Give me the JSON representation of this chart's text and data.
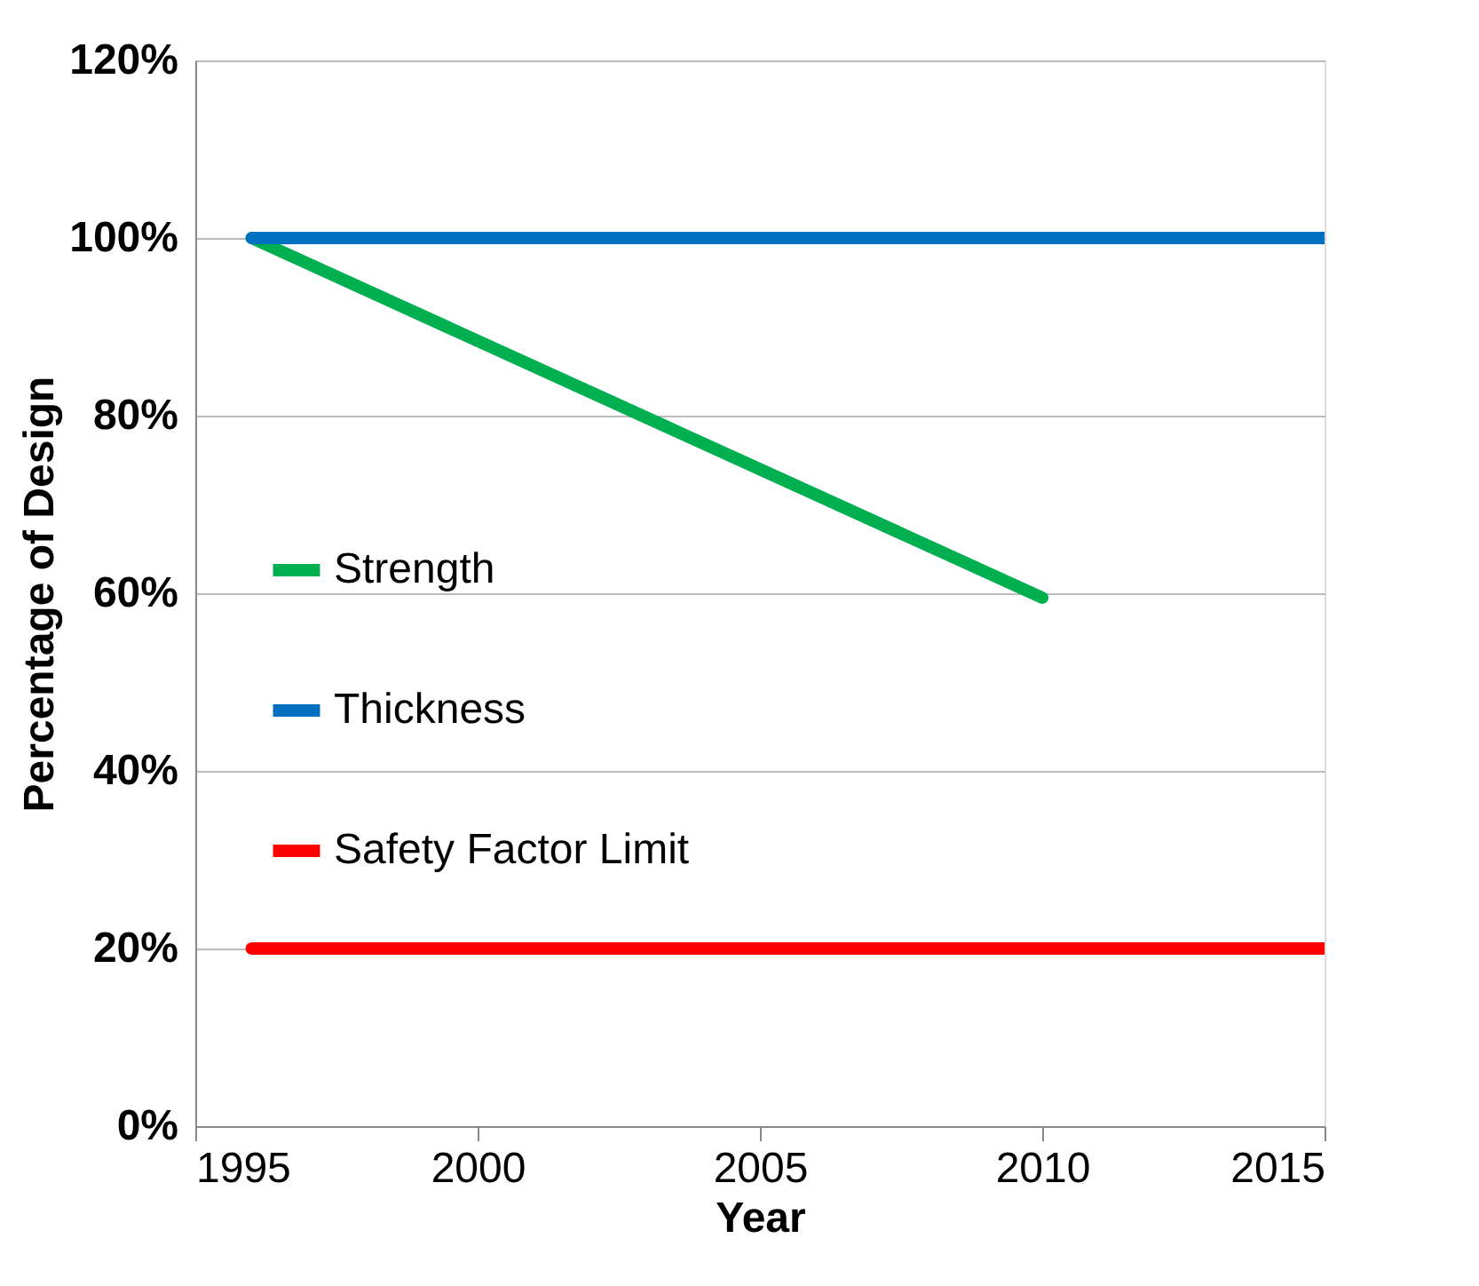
{
  "chart_data": {
    "type": "line",
    "xlabel": "Year",
    "ylabel": "Percentage of Design",
    "series": [
      {
        "name": "Strength",
        "color": "#00b050",
        "x": [
          1996,
          2010
        ],
        "values": [
          100,
          59.5
        ]
      },
      {
        "name": "Thickness",
        "color": "#0070c0",
        "x": [
          1996,
          2015
        ],
        "values": [
          100,
          100
        ]
      },
      {
        "name": "Safety Factor Limit",
        "color": "#ff0000",
        "x": [
          1996,
          2015
        ],
        "values": [
          20,
          20
        ]
      }
    ],
    "xlim": [
      1995,
      2015
    ],
    "xticks": [
      1995,
      2000,
      2005,
      2010,
      2015
    ],
    "ylim": [
      0,
      120
    ],
    "yticks": [
      {
        "value": 0,
        "label": "0%"
      },
      {
        "value": 20,
        "label": "20%"
      },
      {
        "value": 40,
        "label": "40%"
      },
      {
        "value": 60,
        "label": "60%"
      },
      {
        "value": 80,
        "label": "80%"
      },
      {
        "value": 100,
        "label": "100%"
      },
      {
        "value": 120,
        "label": "120%"
      }
    ],
    "grid": "y",
    "legend": "left",
    "marker": "none",
    "line_style": "solid"
  }
}
